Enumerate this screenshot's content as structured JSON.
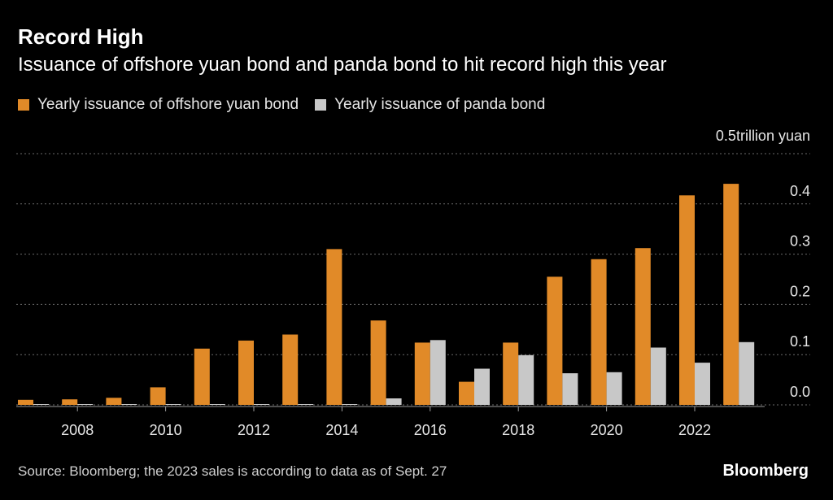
{
  "header": {
    "title": "Record High",
    "subtitle": "Issuance of offshore yuan bond and panda bond to hit record high this year"
  },
  "legend": {
    "items": [
      {
        "label": "Yearly issuance of offshore yuan bond",
        "color": "#E18A28"
      },
      {
        "label": "Yearly issuance of panda bond",
        "color": "#C8C8C8"
      }
    ]
  },
  "footer": {
    "source": "Source: Bloomberg; the 2023 sales is according to data as of Sept. 27",
    "brand": "Bloomberg"
  },
  "chart_data": {
    "type": "bar",
    "title": "Record High",
    "subtitle": "Issuance of offshore yuan bond and panda bond to hit record high this year",
    "unit_label": "0.5trillion yuan",
    "categories": [
      "2007",
      "2008",
      "2009",
      "2010",
      "2011",
      "2012",
      "2013",
      "2014",
      "2015",
      "2016",
      "2017",
      "2018",
      "2019",
      "2020",
      "2021",
      "2022",
      "2023"
    ],
    "x_tick_labels": [
      "2008",
      "2010",
      "2012",
      "2014",
      "2016",
      "2018",
      "2020",
      "2022"
    ],
    "y_tick_labels": [
      "0.0",
      "0.1",
      "0.2",
      "0.3",
      "0.4"
    ],
    "ylim": [
      -0.005,
      0.5
    ],
    "grid": true,
    "legend_position": "top-left",
    "series": [
      {
        "name": "Yearly issuance of offshore yuan bond",
        "color": "#E18A28",
        "values": [
          0.01,
          0.011,
          0.014,
          0.035,
          0.112,
          0.128,
          0.14,
          0.31,
          0.168,
          0.124,
          0.046,
          0.124,
          0.255,
          0.29,
          0.312,
          0.417,
          0.44
        ]
      },
      {
        "name": "Yearly issuance of panda bond",
        "color": "#C8C8C8",
        "values": [
          0.0,
          0.0,
          0.001,
          0.0,
          0.001,
          0.001,
          0.001,
          0.001,
          0.013,
          0.129,
          0.072,
          0.099,
          0.063,
          0.065,
          0.114,
          0.084,
          0.125
        ]
      }
    ]
  }
}
